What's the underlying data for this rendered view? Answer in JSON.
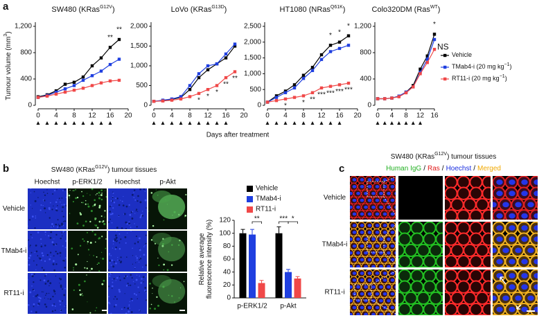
{
  "chart_data": [
    {
      "type": "line",
      "title": [
        "SW480 (KRas",
        "G12V",
        ")"
      ],
      "ylabel": [
        "Tumour volume (mm",
        "3",
        ")"
      ],
      "x": [
        0,
        2,
        4,
        6,
        8,
        10,
        12,
        14,
        16,
        18
      ],
      "xlim": [
        0,
        20
      ],
      "xticks": [
        0,
        4,
        8,
        12,
        16,
        20
      ],
      "ylim": [
        0,
        1200
      ],
      "yticks": [
        0,
        400,
        800,
        {
          "value": 1200,
          "label": "1,200"
        }
      ],
      "treatment_days": [
        0,
        2,
        4,
        6,
        8,
        10,
        12,
        14,
        16
      ],
      "series": [
        {
          "color": "#000000",
          "values": [
            130,
            160,
            220,
            320,
            350,
            430,
            600,
            720,
            880,
            1000
          ]
        },
        {
          "color": "#1f3fe0",
          "values": [
            120,
            150,
            200,
            250,
            300,
            380,
            450,
            520,
            620,
            700
          ]
        },
        {
          "color": "#f04848",
          "values": [
            120,
            140,
            170,
            200,
            230,
            260,
            300,
            340,
            370,
            380
          ]
        }
      ],
      "annotations": [
        {
          "x": 16,
          "text": "**",
          "side": "above"
        },
        {
          "x": 18,
          "text": "**",
          "side": "above"
        }
      ]
    },
    {
      "type": "line",
      "title": [
        "LoVo (KRas",
        "G13D",
        ")"
      ],
      "x": [
        0,
        2,
        4,
        6,
        8,
        10,
        12,
        14,
        16,
        18
      ],
      "xlim": [
        0,
        20
      ],
      "xticks": [
        0,
        4,
        8,
        12,
        16,
        20
      ],
      "ylim": [
        0,
        2000
      ],
      "yticks": [
        0,
        500,
        {
          "value": 1000,
          "label": "1,000"
        },
        {
          "value": 1500,
          "label": "1,500"
        },
        {
          "value": 2000,
          "label": "2,000"
        }
      ],
      "treatment_days": [
        0,
        2,
        4,
        6,
        8,
        10,
        12,
        14,
        16
      ],
      "series": [
        {
          "color": "#000000",
          "values": [
            100,
            120,
            150,
            200,
            400,
            700,
            900,
            1050,
            1200,
            1500
          ]
        },
        {
          "color": "#1f3fe0",
          "values": [
            100,
            130,
            160,
            220,
            500,
            800,
            1000,
            1050,
            1300,
            1550
          ]
        },
        {
          "color": "#f04848",
          "values": [
            100,
            110,
            130,
            160,
            220,
            300,
            400,
            500,
            700,
            850
          ]
        }
      ],
      "annotations": [
        {
          "x": 10,
          "text": "*",
          "side": "below"
        },
        {
          "x": 12,
          "text": "*",
          "side": "below"
        },
        {
          "x": 14,
          "text": "*",
          "side": "below"
        },
        {
          "x": 16,
          "text": "**",
          "side": "below"
        },
        {
          "x": 18,
          "text": "**",
          "side": "below"
        }
      ]
    },
    {
      "type": "line",
      "title": [
        "HT1080 (NRas",
        "Q61K",
        ")"
      ],
      "x": [
        0,
        2,
        4,
        6,
        8,
        10,
        12,
        14,
        16,
        18
      ],
      "xlim": [
        0,
        20
      ],
      "xticks": [
        0,
        4,
        8,
        12,
        16,
        20
      ],
      "ylim": [
        0,
        2500
      ],
      "yticks": [
        0,
        500,
        {
          "value": 1000,
          "label": "1,000"
        },
        {
          "value": 1500,
          "label": "1,500"
        },
        {
          "value": 2000,
          "label": "2,000"
        },
        {
          "value": 2500,
          "label": "2,500"
        }
      ],
      "treatment_days": [
        0,
        2,
        4,
        6,
        8,
        10,
        12,
        14,
        16
      ],
      "series": [
        {
          "color": "#000000",
          "values": [
            100,
            300,
            450,
            650,
            950,
            1200,
            1600,
            1900,
            2000,
            2200
          ]
        },
        {
          "color": "#1f3fe0",
          "values": [
            100,
            250,
            400,
            550,
            850,
            1100,
            1450,
            1700,
            1800,
            1900
          ]
        },
        {
          "color": "#f04848",
          "values": [
            100,
            150,
            200,
            250,
            300,
            400,
            550,
            600,
            650,
            700
          ]
        }
      ],
      "annotations": [
        {
          "x": 14,
          "text": "*",
          "side": "above"
        },
        {
          "x": 16,
          "text": "*",
          "side": "above"
        },
        {
          "x": 18,
          "text": "*",
          "side": "above"
        },
        {
          "x": 4,
          "text": "*",
          "side": "below"
        },
        {
          "x": 8,
          "text": "*",
          "side": "below"
        },
        {
          "x": 10,
          "text": "**",
          "side": "below"
        },
        {
          "x": 12,
          "text": "***",
          "side": "below"
        },
        {
          "x": 14,
          "text": "***",
          "side": "below"
        },
        {
          "x": 16,
          "text": "***",
          "side": "below"
        },
        {
          "x": 18,
          "text": "***",
          "side": "below"
        }
      ]
    },
    {
      "type": "line",
      "title": [
        "Colo320DM (Ras",
        "WT",
        ")"
      ],
      "x": [
        0,
        2,
        4,
        6,
        8,
        10,
        12,
        14,
        16
      ],
      "xlim": [
        0,
        16
      ],
      "xticks": [
        0,
        4,
        8,
        12,
        16
      ],
      "ylim": [
        0,
        1200
      ],
      "yticks": [
        0,
        400,
        800,
        {
          "value": 1200,
          "label": "1,200"
        }
      ],
      "treatment_days": [
        0,
        2,
        4,
        6,
        8,
        10,
        12
      ],
      "series": [
        {
          "name": [
            "Vehicle"
          ],
          "color": "#000000",
          "values": [
            100,
            100,
            110,
            140,
            200,
            300,
            550,
            750,
            1080
          ]
        },
        {
          "name": [
            "TMab4-i (20 mg kg",
            "−1",
            ")"
          ],
          "color": "#1f3fe0",
          "values": [
            100,
            100,
            110,
            140,
            200,
            280,
            500,
            700,
            1000
          ]
        },
        {
          "name": [
            "RT11-i (20 mg kg",
            "−1",
            ")"
          ],
          "color": "#f04848",
          "values": [
            100,
            100,
            110,
            130,
            190,
            280,
            480,
            650,
            850
          ]
        }
      ],
      "annotations": [
        {
          "x": 16,
          "text": "*",
          "side": "above"
        },
        {
          "x": 16,
          "text": "NS",
          "side": "right"
        }
      ]
    },
    {
      "type": "bar",
      "categories": [
        "p-ERK1/2",
        "p-Akt"
      ],
      "ylabel_lines": [
        "Relative average",
        "fluorescence intensity (%)"
      ],
      "ylim": [
        0,
        120
      ],
      "yticks": [
        0,
        20,
        40,
        60,
        80,
        100,
        120
      ],
      "series": [
        {
          "name": "Vehicle",
          "color": "#000000",
          "values": [
            100,
            100
          ],
          "errors": [
            6,
            10
          ]
        },
        {
          "name": "TMab4-i",
          "color": "#1f3fe0",
          "values": [
            98,
            40
          ],
          "errors": [
            8,
            4
          ]
        },
        {
          "name": "RT11-i",
          "color": "#f04848",
          "values": [
            23,
            30
          ],
          "errors": [
            4,
            3
          ]
        }
      ],
      "significance": [
        {
          "category": 0,
          "series": [
            1,
            2
          ],
          "label": "**"
        },
        {
          "category": 1,
          "series": [
            0,
            1
          ],
          "label": "***"
        },
        {
          "category": 1,
          "series": [
            1,
            2
          ],
          "label": "*"
        }
      ]
    }
  ],
  "panel_a": {
    "label": "a",
    "xlabel": "Days after treatment"
  },
  "panel_b": {
    "label": "b",
    "title": [
      "SW480 (KRas",
      "G12V",
      ") tumour tissues"
    ],
    "columns": [
      "Hoechst",
      "p-ERK1/2",
      "Hoechst",
      "p-Akt"
    ],
    "rows": [
      "Vehicle",
      "TMab4-i",
      "RT11-i"
    ]
  },
  "panel_c": {
    "label": "c",
    "title": [
      "SW480 (KRas",
      "G12V",
      ") tumour tissues"
    ],
    "channels": [
      {
        "text": "Human IgG",
        "color": "#22b022"
      },
      {
        "text": "/",
        "color": "#000000"
      },
      {
        "text": "Ras",
        "color": "#e01818"
      },
      {
        "text": "/",
        "color": "#000000"
      },
      {
        "text": "Hoechst",
        "color": "#1a2ee0"
      },
      {
        "text": "/",
        "color": "#000000"
      },
      {
        "text": "Merged",
        "color": "#f0a800"
      }
    ],
    "rows": [
      "Vehicle",
      "TMab4-i",
      "RT11-i"
    ]
  }
}
